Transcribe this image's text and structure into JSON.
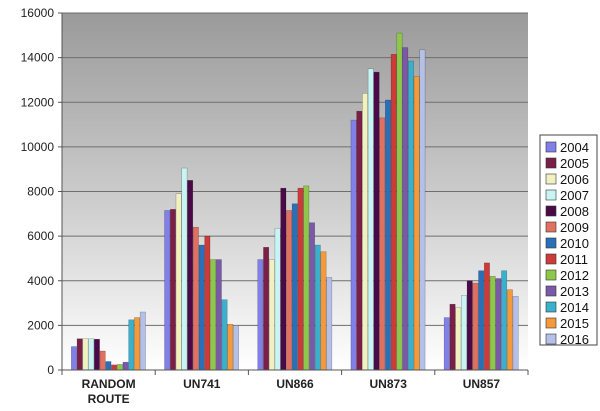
{
  "chart_data": {
    "type": "bar",
    "categories": [
      [
        "RANDOM",
        "ROUTE"
      ],
      [
        "UN741"
      ],
      [
        "UN866"
      ],
      [
        "UN873"
      ],
      [
        "UN857"
      ]
    ],
    "ylim": [
      0,
      16000
    ],
    "yticks": [
      0,
      2000,
      4000,
      6000,
      8000,
      10000,
      12000,
      14000,
      16000
    ],
    "grid": true,
    "legend_position": "right",
    "series": [
      {
        "name": "2004",
        "color": "#8080e8",
        "values": [
          1050,
          7150,
          4950,
          11200,
          2350
        ]
      },
      {
        "name": "2005",
        "color": "#7a1f48",
        "values": [
          1400,
          7200,
          5500,
          11600,
          2950
        ]
      },
      {
        "name": "2006",
        "color": "#f0f0c0",
        "values": [
          1400,
          7900,
          4950,
          12400,
          2800
        ]
      },
      {
        "name": "2007",
        "color": "#c8f4f4",
        "values": [
          1400,
          9050,
          6350,
          13500,
          3350
        ]
      },
      {
        "name": "2008",
        "color": "#4a0a48",
        "values": [
          1380,
          8500,
          8150,
          13350,
          4000
        ]
      },
      {
        "name": "2009",
        "color": "#e07060",
        "values": [
          850,
          6400,
          7150,
          11300,
          3900
        ]
      },
      {
        "name": "2010",
        "color": "#2a70b8",
        "values": [
          380,
          5600,
          7450,
          12100,
          4450
        ]
      },
      {
        "name": "2011",
        "color": "#cc3a3a",
        "values": [
          230,
          6000,
          8150,
          14150,
          4800
        ]
      },
      {
        "name": "2012",
        "color": "#8ec84a",
        "values": [
          250,
          4950,
          8250,
          15100,
          4200
        ]
      },
      {
        "name": "2013",
        "color": "#7a5aa8",
        "values": [
          350,
          4950,
          6600,
          14450,
          4100
        ]
      },
      {
        "name": "2014",
        "color": "#3ab0cc",
        "values": [
          2250,
          3150,
          5600,
          13850,
          4450
        ]
      },
      {
        "name": "2015",
        "color": "#f49a3a",
        "values": [
          2350,
          2050,
          5300,
          13150,
          3600
        ]
      },
      {
        "name": "2016",
        "color": "#b4c0e8",
        "values": [
          2600,
          2000,
          4150,
          14350,
          3300
        ]
      }
    ]
  }
}
